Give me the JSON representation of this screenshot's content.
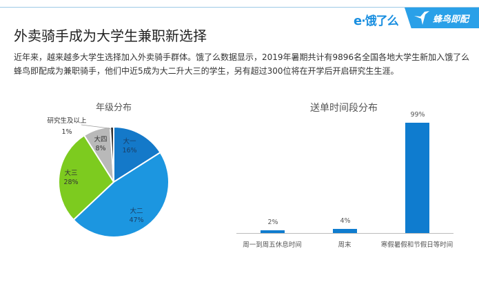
{
  "header": {
    "logo_eleme": "饿了么",
    "logo_fengniao": "蜂鸟即配",
    "title": "外卖骑手成为大学生兼职新选择"
  },
  "paragraph": "近年来，越来越多大学生选择加入外卖骑手群体。饿了么数据显示，2019年暑期共计有9896名全国各地大学生新加入饿了么蜂鸟即配成为兼职骑手，他们中近5成为大二升大三的学生，另有超过300位将在开学后开启研究生生涯。",
  "colors": {
    "accent": "#2aa0e8",
    "bar": "#0f7ccf",
    "slice_1": "#1479c9",
    "slice_2": "#1c96e0",
    "slice_3": "#7dcb1f",
    "slice_4": "#b9b9b9",
    "slice_5": "#333333"
  },
  "chart_data": [
    {
      "type": "pie",
      "title": "年级分布",
      "categories": [
        "大一",
        "大二",
        "大三",
        "大四",
        "研究生及以上"
      ],
      "values": [
        16,
        47,
        28,
        8,
        1
      ],
      "labels": [
        "16%",
        "47%",
        "28%",
        "8%",
        "1%"
      ]
    },
    {
      "type": "bar",
      "title": "送单时间段分布",
      "categories": [
        "周一到周五休息时间",
        "周末",
        "寒假暑假和节假日等时间"
      ],
      "values": [
        2,
        4,
        99
      ],
      "labels": [
        "2%",
        "4%",
        "99%"
      ],
      "xlabel": "",
      "ylabel": "",
      "grid": false
    }
  ]
}
